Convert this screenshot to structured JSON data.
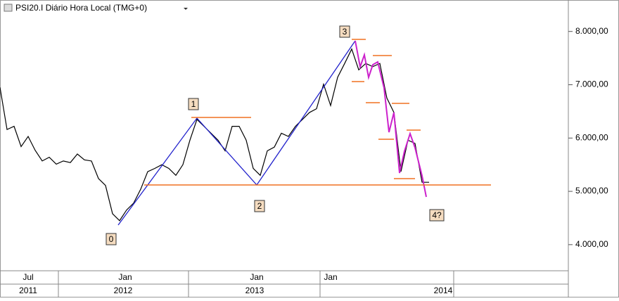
{
  "chart_data": {
    "type": "line",
    "title": "PSI20.I Diário Hora Local (TMG+0)",
    "series": [
      {
        "name": "PSI20.I",
        "color": "#000000",
        "values": [
          6950,
          6160,
          6220,
          5840,
          6030,
          5770,
          5570,
          5640,
          5510,
          5570,
          5540,
          5700,
          5590,
          5570,
          5240,
          5110,
          4580,
          4450,
          4650,
          4780,
          5040,
          5370,
          5430,
          5500,
          5430,
          5300,
          5500,
          5960,
          6350,
          6220,
          6090,
          5960,
          5760,
          6220,
          6220,
          5960,
          5430,
          5300,
          5760,
          5830,
          6090,
          6030,
          6220,
          6350,
          6480,
          6550,
          7010,
          6610,
          7140,
          7400,
          7670,
          7280,
          7400,
          7340,
          7400,
          6750,
          6480,
          5370,
          5960,
          5900,
          5170,
          5170
        ]
      }
    ],
    "ylim": [
      3510,
      8590
    ],
    "yticks": [
      {
        "value": 4000,
        "label": "4.000,00"
      },
      {
        "value": 5000,
        "label": "5.000,00"
      },
      {
        "value": 6000,
        "label": "6.000,00"
      },
      {
        "value": 7000,
        "label": "7.000,00"
      },
      {
        "value": 8000,
        "label": "8.000,00"
      }
    ],
    "month_labels": [
      "Jul",
      "Jan",
      "Jan",
      "Jan"
    ],
    "year_labels": [
      "2011",
      "2012",
      "2013",
      "2014"
    ],
    "wave_labels": [
      "0",
      "1",
      "2",
      "3",
      "4?"
    ]
  }
}
